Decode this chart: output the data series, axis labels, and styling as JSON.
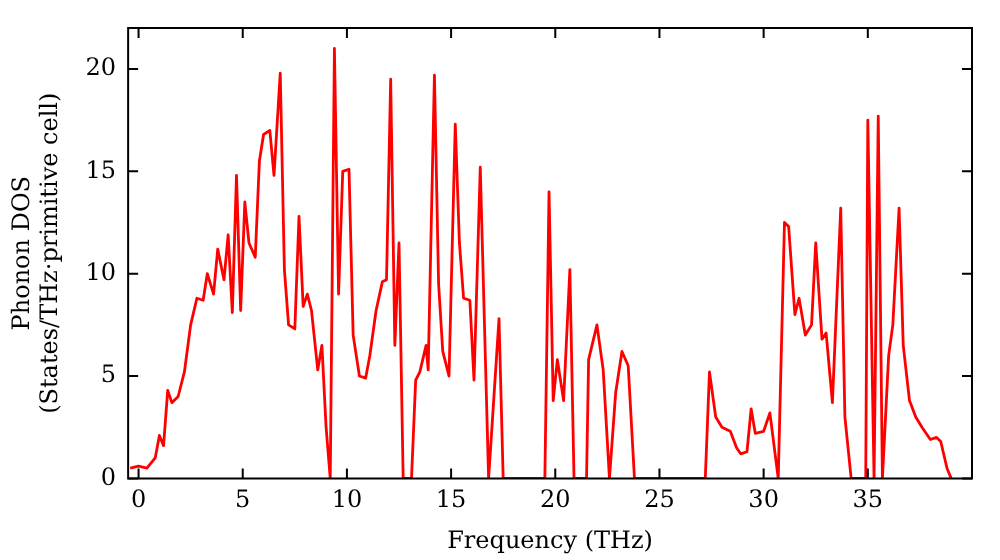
{
  "chart_data": {
    "type": "line",
    "xlabel": "Frequency (THz)",
    "ylabel": "Phonon DOS\n(States/THz·primitive cell)",
    "xlim": [
      -0.5,
      40
    ],
    "ylim": [
      0,
      22
    ],
    "xticks": [
      0,
      5,
      10,
      15,
      20,
      25,
      30,
      35
    ],
    "yticks": [
      0,
      5,
      10,
      15,
      20
    ],
    "grid": false,
    "legend": false,
    "marker": "none",
    "line_style": "solid",
    "series": [
      {
        "color": "#ff0000",
        "x": [
          -0.4,
          0,
          0.4,
          0.8,
          1,
          1.2,
          1.4,
          1.6,
          1.9,
          2.2,
          2.5,
          2.8,
          3.1,
          3.3,
          3.6,
          3.8,
          4.1,
          4.3,
          4.5,
          4.7,
          4.9,
          5.1,
          5.3,
          5.6,
          5.8,
          6.0,
          6.3,
          6.5,
          6.8,
          7.0,
          7.2,
          7.5,
          7.7,
          7.9,
          8.1,
          8.3,
          8.6,
          8.8,
          9.0,
          9.2,
          9.4,
          9.6,
          9.8,
          10.1,
          10.3,
          10.6,
          10.9,
          11.1,
          11.4,
          11.7,
          11.9,
          12.1,
          12.3,
          12.5,
          12.7,
          13.1,
          13.3,
          13.5,
          13.8,
          13.9,
          14.2,
          14.4,
          14.6,
          14.9,
          15.2,
          15.4,
          15.6,
          15.9,
          16.1,
          16.4,
          16.8,
          17.3,
          17.5,
          19.5,
          19.7,
          19.9,
          20.1,
          20.4,
          20.7,
          20.9,
          21.5,
          21.6,
          22.0,
          22.3,
          22.6,
          22.9,
          23.2,
          23.5,
          23.8,
          27.2,
          27.4,
          27.7,
          28.0,
          28.4,
          28.7,
          28.9,
          29.2,
          29.4,
          29.6,
          30.0,
          30.3,
          30.7,
          31.0,
          31.2,
          31.5,
          31.7,
          32.0,
          32.3,
          32.5,
          32.8,
          33.0,
          33.3,
          33.7,
          33.9,
          34.2,
          34.9,
          35.0,
          35.3,
          35.5,
          35.7,
          36.0,
          36.2,
          36.5,
          36.7,
          37.0,
          37.3,
          37.6,
          38.0,
          38.3,
          38.5,
          38.8,
          39.0
        ],
        "values": [
          0.5,
          0.6,
          0.5,
          1,
          2.1,
          1.6,
          4.3,
          3.7,
          4,
          5.2,
          7.5,
          8.8,
          8.7,
          10,
          9,
          11.2,
          9.7,
          11.9,
          8.1,
          14.8,
          8.2,
          13.5,
          11.5,
          10.8,
          15.5,
          16.8,
          17,
          14.8,
          19.8,
          10.2,
          7.5,
          7.3,
          12.8,
          8.4,
          9,
          8.2,
          5.3,
          6.5,
          2.5,
          0,
          21,
          9,
          15,
          15.1,
          7,
          5,
          4.9,
          6,
          8.2,
          9.6,
          9.7,
          19.5,
          6.5,
          11.5,
          0,
          0,
          4.8,
          5.2,
          6.5,
          5.3,
          19.7,
          9.5,
          6.2,
          5,
          17.3,
          11.5,
          8.8,
          8.7,
          4.8,
          15.2,
          0,
          7.8,
          0,
          0,
          14,
          3.8,
          5.8,
          3.8,
          10.2,
          0,
          0,
          5.8,
          7.5,
          5.3,
          0,
          4.2,
          6.2,
          5.5,
          0,
          0,
          5.2,
          3,
          2.5,
          2.3,
          1.5,
          1.2,
          1.3,
          3.4,
          2.2,
          2.3,
          3.2,
          0,
          12.5,
          12.3,
          8,
          8.8,
          7,
          7.5,
          11.5,
          6.8,
          7.1,
          3.7,
          13.2,
          3,
          0,
          0,
          17.5,
          0,
          17.7,
          0,
          6,
          7.5,
          13.2,
          6.5,
          3.8,
          3,
          2.5,
          1.9,
          2,
          1.8,
          0.5,
          0
        ]
      }
    ]
  }
}
